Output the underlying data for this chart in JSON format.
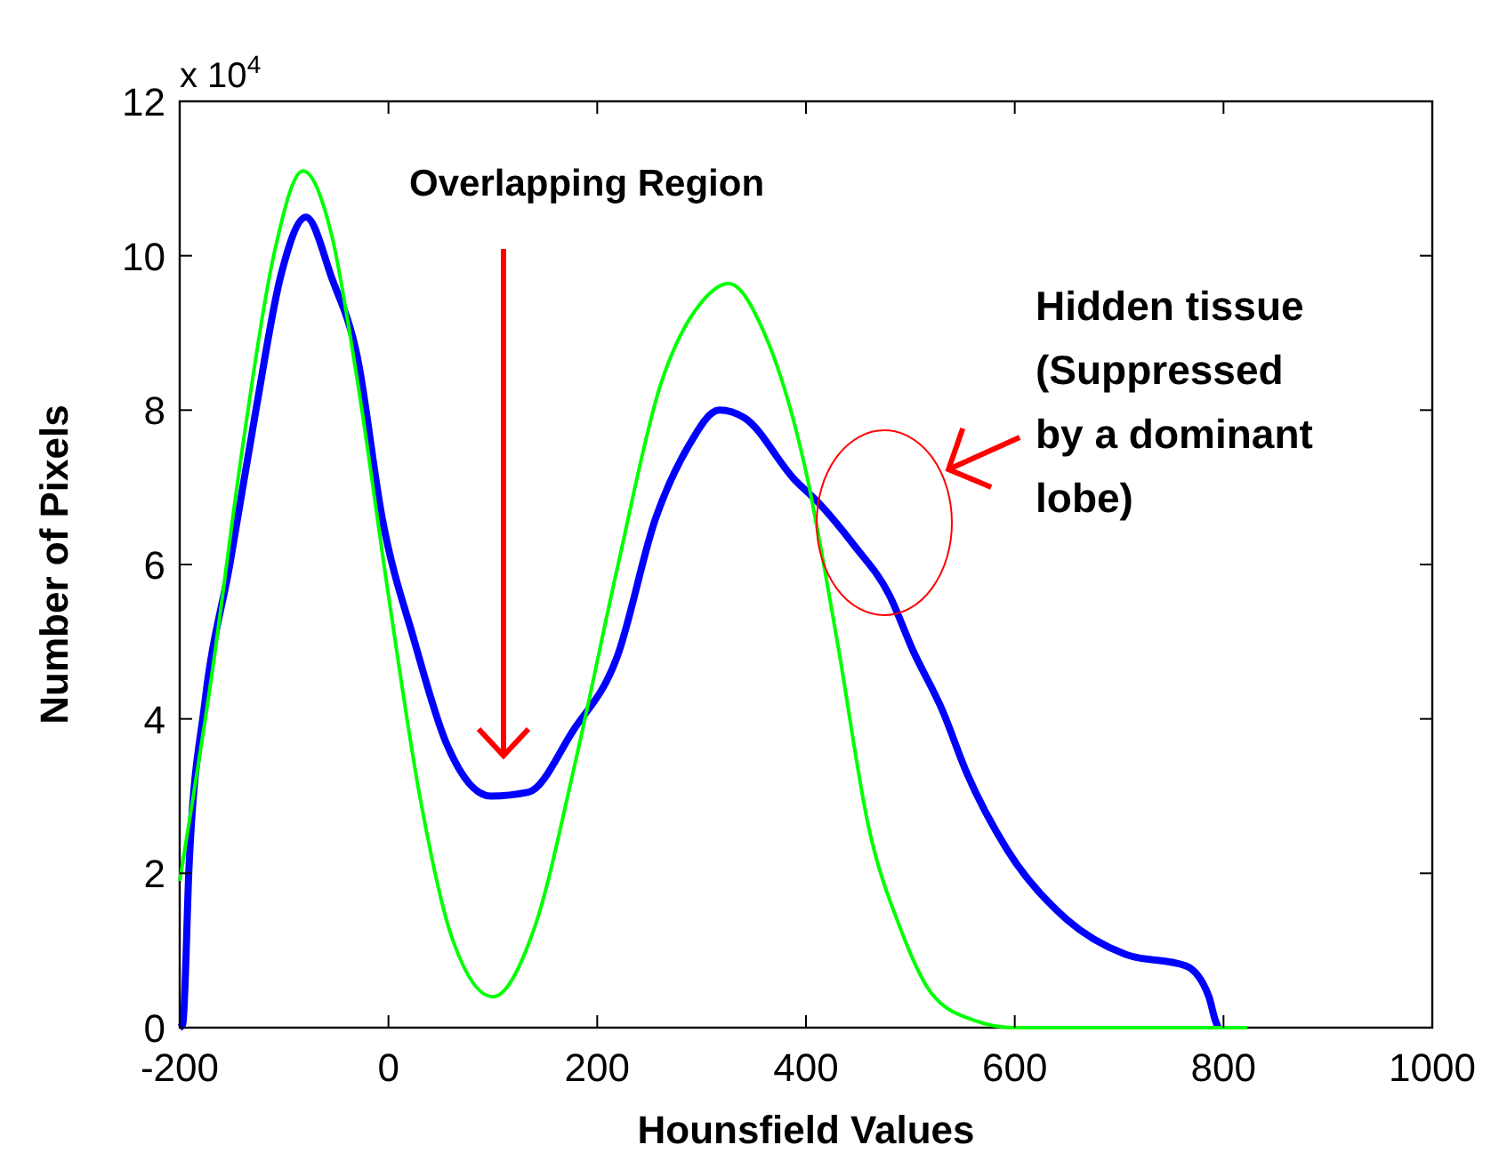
{
  "chart_data": {
    "type": "line",
    "xlabel": "Hounsfield Values",
    "ylabel": "Number of Pixels",
    "xlim": [
      -200,
      1000
    ],
    "xticks": [
      -200,
      0,
      200,
      400,
      600,
      800,
      1000
    ],
    "ylim": [
      0,
      12
    ],
    "yticks": [
      0,
      2,
      4,
      6,
      8,
      10,
      12
    ],
    "grid": false,
    "marker": "none",
    "line_style": "solid",
    "series": [
      {
        "color": "#0000ff",
        "x": [
          -200,
          -197,
          -191,
          -176,
          -152,
          -127,
          -103,
          -79,
          -54,
          -30,
          -6,
          25,
          55,
          98,
          134,
          177,
          219,
          256,
          286,
          317,
          341,
          389,
          412,
          446,
          480,
          502,
          531,
          554,
          593,
          650,
          706,
          764,
          786,
          792,
          795
        ],
        "values": [
          0,
          0.05,
          2.1,
          4.2,
          6.0,
          8.0,
          9.75,
          10.5,
          9.7,
          8.7,
          6.6,
          5.0,
          3.7,
          3.0,
          3.05,
          3.85,
          4.8,
          6.6,
          7.5,
          8.0,
          7.9,
          7.1,
          6.8,
          6.25,
          5.6,
          4.9,
          4.1,
          3.3,
          2.3,
          1.4,
          0.95,
          0.8,
          0.4,
          0.1,
          0
        ]
      },
      {
        "color": "#00ff00",
        "x": [
          -200,
          -170,
          -140,
          -110,
          -82,
          -55,
          -30,
          0,
          30,
          60,
          100,
          140,
          180,
          220,
          260,
          300,
          326,
          360,
          400,
          430,
          460,
          490,
          520,
          560,
          600,
          823
        ],
        "values": [
          1.9,
          4.5,
          7.5,
          10.0,
          11.1,
          10.3,
          8.4,
          5.6,
          3.0,
          1.2,
          0.4,
          1.3,
          3.5,
          6.0,
          8.3,
          9.4,
          9.64,
          9.0,
          7.2,
          5.0,
          2.6,
          1.3,
          0.45,
          0.1,
          0,
          0
        ]
      }
    ],
    "annotations": [
      "x 10$^{4}$",
      "Overlapping Region",
      "Hidden tissue (Suppressed by a dominant lobe)"
    ]
  }
}
